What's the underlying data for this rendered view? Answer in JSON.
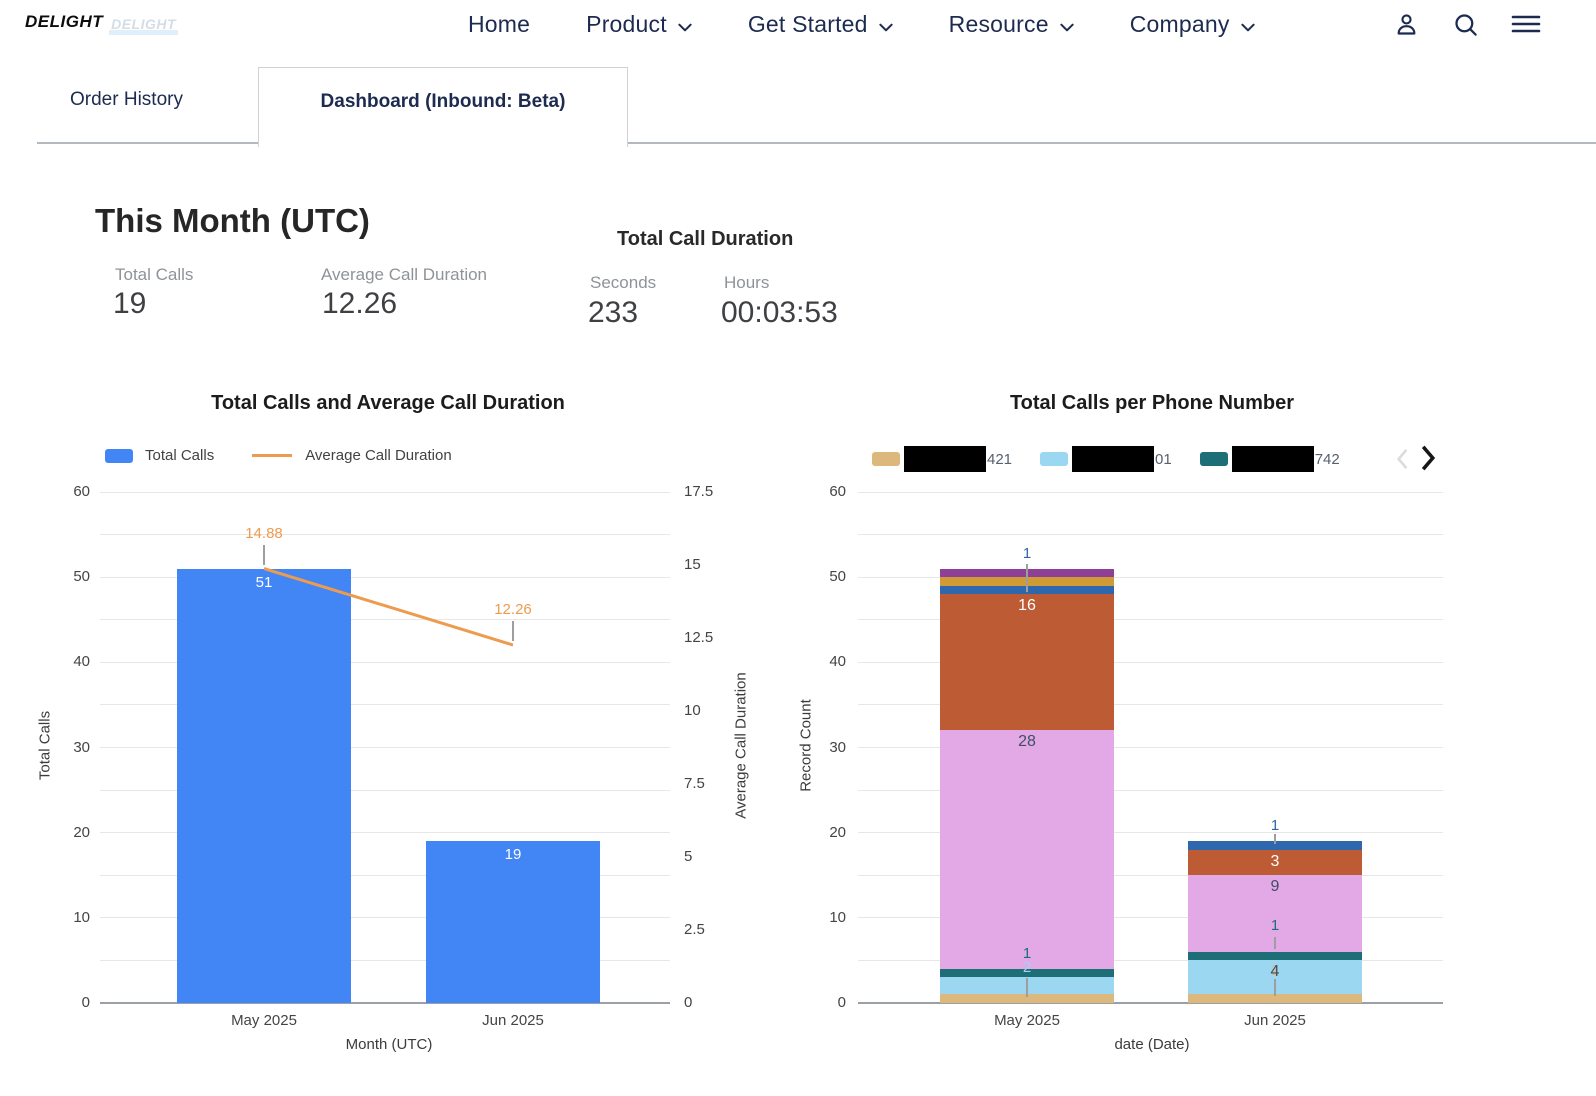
{
  "header": {
    "logo": {
      "text": "DELIGHT",
      "ghost_text": "DELIGHT"
    },
    "nav_items": [
      {
        "label": "Home",
        "dropdown": false
      },
      {
        "label": "Product",
        "dropdown": true
      },
      {
        "label": "Get Started",
        "dropdown": true
      },
      {
        "label": "Resource",
        "dropdown": true
      },
      {
        "label": "Company",
        "dropdown": true
      }
    ],
    "action_icons": [
      {
        "name": "account-icon"
      },
      {
        "name": "search-icon"
      },
      {
        "name": "menu-icon"
      }
    ]
  },
  "tabs": [
    {
      "label": "Order History",
      "active": false
    },
    {
      "label": "Dashboard (Inbound: Beta)",
      "active": true
    }
  ],
  "summary": {
    "title": "This Month (UTC)",
    "stats": [
      {
        "label": "Total Calls",
        "value": "19"
      },
      {
        "label": "Average Call Duration",
        "value": "12.26"
      }
    ],
    "duration": {
      "title": "Total Call Duration",
      "items": [
        {
          "label": "Seconds",
          "value": "233"
        },
        {
          "label": "Hours",
          "value": "00:03:53"
        }
      ]
    }
  },
  "colors": {
    "nav_text": "#1d2b50",
    "bar_blue": "#4285f4",
    "line_orange": "#ED9B4F",
    "grid": "#e7e7e7",
    "baseline": "#9aa0a6",
    "tick_text": "#444444",
    "inside_label_dark": "#3f4e63",
    "callout_stem": "#9e9e9e",
    "redaction": "#000000"
  },
  "chart_data": [
    {
      "type": "bar",
      "title": "Total Calls and Average Call Duration",
      "categories": [
        "May 2025",
        "Jun 2025"
      ],
      "series": [
        {
          "name": "Total Calls",
          "kind": "bar",
          "axis": "left",
          "color": "#4285f4",
          "values": [
            51,
            19
          ]
        },
        {
          "name": "Average Call Duration",
          "kind": "line",
          "axis": "right",
          "color": "#ED9B4F",
          "values": [
            14.88,
            12.26
          ],
          "value_labels": [
            "14.88",
            "12.26"
          ]
        }
      ],
      "xlabel": "Month (UTC)",
      "ylabel_left": "Total Calls",
      "ylabel_right": "Average Call Duration",
      "ylim_left": [
        0,
        60
      ],
      "yticks_left": [
        0,
        10,
        20,
        30,
        40,
        50,
        60
      ],
      "ylim_right": [
        0,
        17.5
      ],
      "yticks_right": [
        0,
        2.5,
        5,
        7.5,
        10,
        12.5,
        15,
        17.5
      ],
      "grid": "on",
      "grid_step": 5,
      "legend_position": "top"
    },
    {
      "type": "bar",
      "stacked": true,
      "title": "Total Calls per Phone Number",
      "categories": [
        "May 2025",
        "Jun 2025"
      ],
      "series": [
        {
          "name": "421",
          "redacted": true,
          "color": "#ddb87d",
          "values": [
            1,
            1
          ]
        },
        {
          "name": "01",
          "redacted": true,
          "color": "#9cd7f2",
          "values": [
            2,
            4
          ]
        },
        {
          "name": "742",
          "redacted": true,
          "color": "#1e6e78",
          "values": [
            1,
            1
          ]
        },
        {
          "name": "",
          "color": "#e2a9e6",
          "values": [
            28,
            9
          ]
        },
        {
          "name": "",
          "color": "#bd5b35",
          "values": [
            16,
            3
          ]
        },
        {
          "name": "",
          "color": "#2f67ae",
          "values": [
            1,
            1
          ]
        },
        {
          "name": "",
          "color": "#d09a35",
          "values": [
            1,
            0
          ]
        },
        {
          "name": "",
          "color": "#8e3f96",
          "values": [
            1,
            0
          ]
        }
      ],
      "legend_visible_entries": [
        {
          "suffix": "421",
          "color": "#ddb87d",
          "redacted": true
        },
        {
          "suffix": "01",
          "color": "#9cd7f2",
          "redacted": true
        },
        {
          "suffix": "742",
          "color": "#1e6e78",
          "redacted": true
        }
      ],
      "legend_paginated": true,
      "callout_labels": [
        {
          "category": 0,
          "text": "1",
          "color": "#2f67ae",
          "label_y": 52.7,
          "stem": [
            51.5,
            48.3
          ]
        },
        {
          "category": 0,
          "text": "2",
          "color": "#9cd7f2",
          "label_y": 4.1,
          "stem": [
            2.9,
            0.7
          ]
        },
        {
          "category": 0,
          "text": "1",
          "color": "#1e6e78",
          "label_y": 5.8
        },
        {
          "category": 1,
          "text": "1",
          "color": "#2f67ae",
          "label_y": 20.8,
          "stem": [
            19.8,
            18.7
          ]
        },
        {
          "category": 1,
          "text": "1",
          "color": "#1e6e78",
          "label_y": 9.0,
          "stem": [
            7.8,
            6.3
          ]
        },
        {
          "category": 1,
          "text": "1",
          "color": "#ddb87d",
          "label_y": 3.8,
          "stem": [
            2.8,
            0.8
          ]
        }
      ],
      "xlabel": "date (Date)",
      "ylabel": "Record Count",
      "ylim": [
        0,
        60
      ],
      "yticks": [
        0,
        10,
        20,
        30,
        40,
        50,
        60
      ],
      "grid": "on",
      "grid_step": 5,
      "legend_position": "top"
    }
  ]
}
